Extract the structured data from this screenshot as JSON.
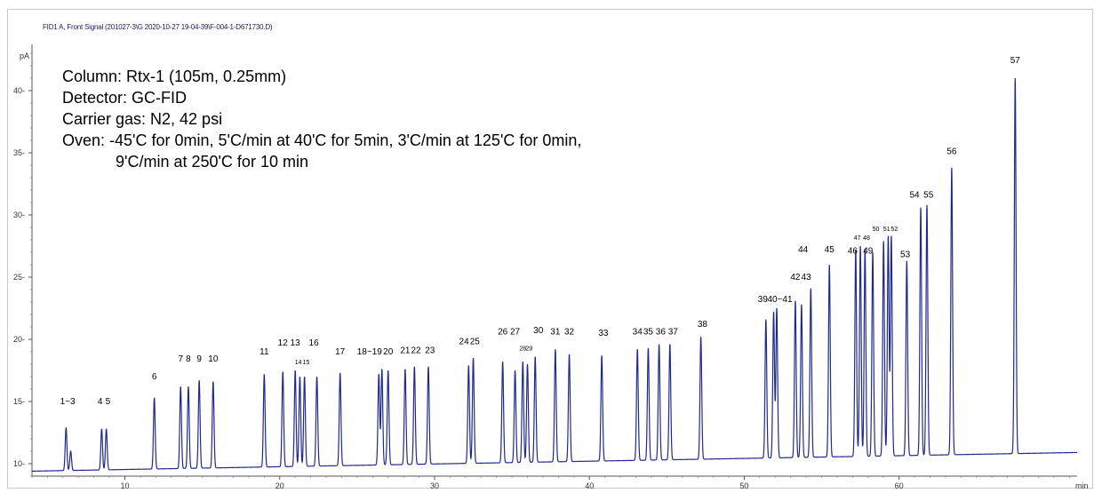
{
  "chart_data": {
    "type": "line",
    "title": "FID1 A, Front Signal (201027-3\\G 2020-10-27 19-04-39\\F-004-1-D671730.D)",
    "ylabel": "pA",
    "xlabel": "min",
    "xlim": [
      4,
      71.5
    ],
    "ylim": [
      9,
      43
    ],
    "x_ticks": [
      10,
      20,
      30,
      40,
      50,
      60
    ],
    "y_ticks": [
      10,
      15,
      20,
      25,
      30,
      35,
      40
    ],
    "baseline": {
      "start": 9.4,
      "end": 10.9
    },
    "annotation_lines": [
      "Column: Rtx-1 (105m, 0.25mm)",
      "Detector: GC-FID",
      "Carrier gas: N2, 42 psi",
      "Oven: -45'C for 0min, 5'C/min at 40'C for 5min, 3'C/min at 125'C for 0min,",
      "9'C/min  at 250'C for 10 min"
    ],
    "series": [
      {
        "peaks": [
          {
            "label": "1~3",
            "rt": [
              6.2,
              6.5
            ],
            "height": [
              12.9,
              11.0
            ],
            "label_rt": 6.3,
            "label_y": 14.8
          },
          {
            "label": "4",
            "rt": [
              8.5
            ],
            "height": [
              12.8
            ],
            "label_rt": 8.4,
            "label_y": 14.8
          },
          {
            "label": "5",
            "rt": [
              8.8
            ],
            "height": [
              12.8
            ],
            "label_rt": 8.9,
            "label_y": 14.8
          },
          {
            "label": "6",
            "rt": [
              11.9
            ],
            "height": [
              15.3
            ],
            "label_rt": 11.9,
            "label_y": 16.8
          },
          {
            "label": "7",
            "rt": [
              13.6
            ],
            "height": [
              16.2
            ],
            "label_rt": 13.6,
            "label_y": 18.2
          },
          {
            "label": "8",
            "rt": [
              14.1
            ],
            "height": [
              16.2
            ],
            "label_rt": 14.1,
            "label_y": 18.2
          },
          {
            "label": "9",
            "rt": [
              14.8
            ],
            "height": [
              16.7
            ],
            "label_rt": 14.8,
            "label_y": 18.2
          },
          {
            "label": "10",
            "rt": [
              15.7
            ],
            "height": [
              16.6
            ],
            "label_rt": 15.7,
            "label_y": 18.2
          },
          {
            "label": "11",
            "rt": [
              19.0
            ],
            "height": [
              17.2
            ],
            "label_rt": 19.0,
            "label_y": 18.8
          },
          {
            "label": "12",
            "rt": [
              20.2
            ],
            "height": [
              17.4
            ],
            "label_rt": 20.2,
            "label_y": 19.5
          },
          {
            "label": "13",
            "rt": [
              21.0
            ],
            "height": [
              17.5
            ],
            "label_rt": 21.0,
            "label_y": 19.5
          },
          {
            "label": "14",
            "rt": [
              21.3
            ],
            "height": [
              17.0
            ],
            "label_rt": 21.2,
            "label_y": 18.0
          },
          {
            "label": "15",
            "rt": [
              21.6
            ],
            "height": [
              17.0
            ],
            "label_rt": 21.7,
            "label_y": 18.0
          },
          {
            "label": "16",
            "rt": [
              22.4
            ],
            "height": [
              17.0
            ],
            "label_rt": 22.2,
            "label_y": 19.5
          },
          {
            "label": "17",
            "rt": [
              23.9
            ],
            "height": [
              17.3
            ],
            "label_rt": 23.9,
            "label_y": 18.8
          },
          {
            "label": "18~19",
            "rt": [
              26.4,
              26.6
            ],
            "height": [
              17.2,
              17.6
            ],
            "label_rt": 25.8,
            "label_y": 18.8
          },
          {
            "label": "20",
            "rt": [
              27.0
            ],
            "height": [
              17.5
            ],
            "label_rt": 27.0,
            "label_y": 18.8
          },
          {
            "label": "21",
            "rt": [
              28.1
            ],
            "height": [
              17.6
            ],
            "label_rt": 28.1,
            "label_y": 18.9
          },
          {
            "label": "22",
            "rt": [
              28.7
            ],
            "height": [
              17.8
            ],
            "label_rt": 28.8,
            "label_y": 18.9
          },
          {
            "label": "23",
            "rt": [
              29.6
            ],
            "height": [
              17.8
            ],
            "label_rt": 29.7,
            "label_y": 18.9
          },
          {
            "label": "24",
            "rt": [
              32.2
            ],
            "height": [
              17.9
            ],
            "label_rt": 31.9,
            "label_y": 19.6
          },
          {
            "label": "25",
            "rt": [
              32.5
            ],
            "height": [
              18.5
            ],
            "label_rt": 32.6,
            "label_y": 19.6
          },
          {
            "label": "26",
            "rt": [
              34.4
            ],
            "height": [
              18.2
            ],
            "label_rt": 34.4,
            "label_y": 20.4
          },
          {
            "label": "27",
            "rt": [
              35.2
            ],
            "height": [
              17.5
            ],
            "label_rt": 35.2,
            "label_y": 20.4
          },
          {
            "label": "28",
            "rt": [
              35.7
            ],
            "height": [
              18.2
            ],
            "label_rt": 35.7,
            "label_y": 19.1
          },
          {
            "label": "29",
            "rt": [
              36.0
            ],
            "height": [
              18.0
            ],
            "label_rt": 36.1,
            "label_y": 19.1
          },
          {
            "label": "30",
            "rt": [
              36.5
            ],
            "height": [
              18.6
            ],
            "label_rt": 36.7,
            "label_y": 20.5
          },
          {
            "label": "31",
            "rt": [
              37.8
            ],
            "height": [
              19.2
            ],
            "label_rt": 37.8,
            "label_y": 20.4
          },
          {
            "label": "32",
            "rt": [
              38.7
            ],
            "height": [
              18.8
            ],
            "label_rt": 38.7,
            "label_y": 20.4
          },
          {
            "label": "33",
            "rt": [
              40.8
            ],
            "height": [
              18.7
            ],
            "label_rt": 40.9,
            "label_y": 20.3
          },
          {
            "label": "34",
            "rt": [
              43.1
            ],
            "height": [
              19.2
            ],
            "label_rt": 43.1,
            "label_y": 20.4
          },
          {
            "label": "35",
            "rt": [
              43.8
            ],
            "height": [
              19.3
            ],
            "label_rt": 43.8,
            "label_y": 20.4
          },
          {
            "label": "36",
            "rt": [
              44.5
            ],
            "height": [
              19.6
            ],
            "label_rt": 44.6,
            "label_y": 20.4
          },
          {
            "label": "37",
            "rt": [
              45.2
            ],
            "height": [
              19.6
            ],
            "label_rt": 45.4,
            "label_y": 20.4
          },
          {
            "label": "38",
            "rt": [
              47.2
            ],
            "height": [
              20.2
            ],
            "label_rt": 47.3,
            "label_y": 21.0
          },
          {
            "label": "39",
            "rt": [
              51.4
            ],
            "height": [
              21.6
            ],
            "label_rt": 51.2,
            "label_y": 23.0
          },
          {
            "label": "40~41",
            "rt": [
              51.9,
              52.1
            ],
            "height": [
              22.2,
              22.5
            ],
            "label_rt": 52.3,
            "label_y": 23.0
          },
          {
            "label": "42",
            "rt": [
              53.3
            ],
            "height": [
              23.1
            ],
            "label_rt": 53.3,
            "label_y": 24.8
          },
          {
            "label": "43",
            "rt": [
              53.7
            ],
            "height": [
              22.8
            ],
            "label_rt": 54.0,
            "label_y": 24.8
          },
          {
            "label": "44",
            "rt": [
              54.3
            ],
            "height": [
              24.1
            ],
            "label_rt": 53.8,
            "label_y": 27.0
          },
          {
            "label": "45",
            "rt": [
              55.5
            ],
            "height": [
              26.0
            ],
            "label_rt": 55.5,
            "label_y": 27.0
          },
          {
            "label": "46",
            "rt": [
              57.2
            ],
            "height": [
              27.2
            ],
            "label_rt": 57.0,
            "label_y": 26.9
          },
          {
            "label": "47",
            "rt": [
              57.5
            ],
            "height": [
              27.5
            ],
            "label_rt": 57.3,
            "label_y": 28.0
          },
          {
            "label": "48",
            "rt": [
              57.8
            ],
            "height": [
              27.3
            ],
            "label_rt": 57.9,
            "label_y": 28.0
          },
          {
            "label": "49",
            "rt": [
              58.3
            ],
            "height": [
              27.0
            ],
            "label_rt": 58.0,
            "label_y": 26.9
          },
          {
            "label": "50",
            "rt": [
              59.0
            ],
            "height": [
              27.9
            ],
            "label_rt": 58.5,
            "label_y": 28.7
          },
          {
            "label": "51",
            "rt": [
              59.3
            ],
            "height": [
              28.3
            ],
            "label_rt": 59.2,
            "label_y": 28.7
          },
          {
            "label": "52",
            "rt": [
              59.5
            ],
            "height": [
              28.3
            ],
            "label_rt": 59.7,
            "label_y": 28.7
          },
          {
            "label": "53",
            "rt": [
              60.5
            ],
            "height": [
              26.3
            ],
            "label_rt": 60.4,
            "label_y": 26.6
          },
          {
            "label": "54",
            "rt": [
              61.4
            ],
            "height": [
              30.6
            ],
            "label_rt": 61.0,
            "label_y": 31.4
          },
          {
            "label": "55",
            "rt": [
              61.8
            ],
            "height": [
              30.8
            ],
            "label_rt": 61.9,
            "label_y": 31.4
          },
          {
            "label": "56",
            "rt": [
              63.4
            ],
            "height": [
              33.8
            ],
            "label_rt": 63.4,
            "label_y": 34.9
          },
          {
            "label": "57",
            "rt": [
              67.5
            ],
            "height": [
              41.0
            ],
            "label_rt": 67.5,
            "label_y": 42.2
          }
        ]
      }
    ]
  }
}
